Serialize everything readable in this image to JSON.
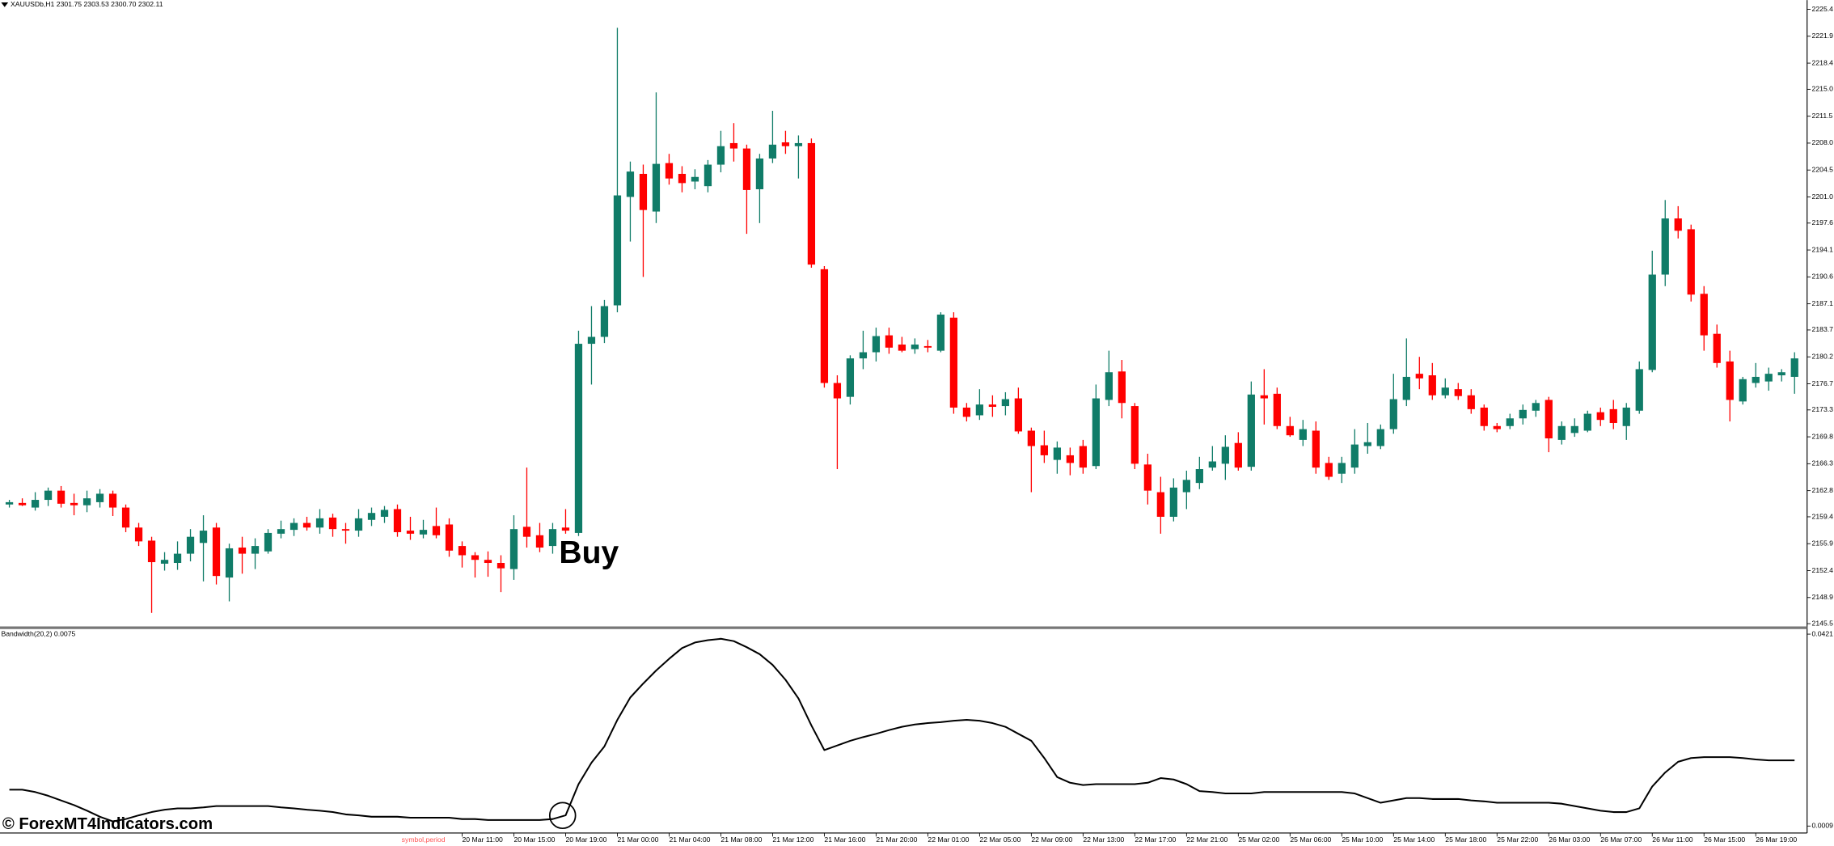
{
  "chart_data": [
    {
      "type": "candlestick",
      "title": "XAUUSDb,H1  2301.75 2303.53 2300.70 2302.11",
      "annotation": "Buy",
      "watermark": "© ForexMT4Indicators.com",
      "period_label": "symbol,period",
      "up_color": "#107c68",
      "down_color": "#ff0000",
      "ylim": [
        2145.2,
        2226.6
      ],
      "yticks": [
        2225.4,
        2221.9,
        2218.4,
        {
          "value": 2215.0,
          "label": "2215.0"
        },
        2211.5,
        {
          "value": 2208.0,
          "label": "2208.0"
        },
        2204.5,
        {
          "value": 2201.0,
          "label": "2201.0"
        },
        2197.6,
        2194.1,
        2190.6,
        2187.1,
        2183.7,
        2180.2,
        2176.7,
        2173.3,
        2169.8,
        2166.3,
        2162.8,
        2159.4,
        2155.9,
        2152.4,
        2148.9,
        2145.5
      ],
      "categories": [
        null,
        null,
        null,
        null,
        null,
        null,
        null,
        null,
        null,
        null,
        null,
        null,
        null,
        null,
        null,
        null,
        null,
        null,
        null,
        null,
        null,
        null,
        null,
        null,
        null,
        null,
        null,
        null,
        null,
        null,
        null,
        null,
        null,
        null,
        null,
        "20 Mar 11:00",
        null,
        null,
        null,
        "20 Mar 15:00",
        null,
        null,
        null,
        "20 Mar 19:00",
        null,
        null,
        null,
        "21 Mar 00:00",
        null,
        null,
        null,
        "21 Mar 04:00",
        null,
        null,
        null,
        "21 Mar 08:00",
        null,
        null,
        null,
        "21 Mar 12:00",
        null,
        null,
        null,
        "21 Mar 16:00",
        null,
        null,
        null,
        "21 Mar 20:00",
        null,
        null,
        null,
        "22 Mar 01:00",
        null,
        null,
        null,
        "22 Mar 05:00",
        null,
        null,
        null,
        "22 Mar 09:00",
        null,
        null,
        null,
        "22 Mar 13:00",
        null,
        null,
        null,
        "22 Mar 17:00",
        null,
        null,
        null,
        "22 Mar 21:00",
        null,
        null,
        null,
        "25 Mar 02:00",
        null,
        null,
        null,
        "25 Mar 06:00",
        null,
        null,
        null,
        "25 Mar 10:00",
        null,
        null,
        null,
        "25 Mar 14:00",
        null,
        null,
        null,
        "25 Mar 18:00",
        null,
        null,
        null,
        "25 Mar 22:00",
        null,
        null,
        null,
        "26 Mar 03:00",
        null,
        null,
        null,
        "26 Mar 07:00",
        null,
        null,
        null,
        "26 Mar 11:00",
        null,
        null,
        null,
        "26 Mar 15:00",
        null,
        null,
        null,
        "26 Mar 19:00",
        null,
        null,
        null
      ],
      "candles": [
        [
          2161.0,
          2161.6,
          2160.6,
          2161.3
        ],
        [
          2161.2,
          2161.8,
          2160.8,
          2160.9
        ],
        [
          2160.6,
          2162.6,
          2160.2,
          2161.6
        ],
        [
          2161.6,
          2163.2,
          2160.8,
          2162.8
        ],
        [
          2162.8,
          2163.4,
          2160.6,
          2161.1
        ],
        [
          2161.2,
          2162.4,
          2159.6,
          2160.9
        ],
        [
          2160.9,
          2162.8,
          2160.0,
          2161.8
        ],
        [
          2161.3,
          2163.0,
          2160.6,
          2162.4
        ],
        [
          2162.4,
          2162.8,
          2159.5,
          2160.6
        ],
        [
          2160.6,
          2161.0,
          2157.4,
          2158.0
        ],
        [
          2158.0,
          2158.6,
          2155.6,
          2156.2
        ],
        [
          2156.3,
          2156.8,
          2146.9,
          2153.5
        ],
        [
          2153.3,
          2154.8,
          2152.4,
          2153.8
        ],
        [
          2153.4,
          2156.2,
          2152.5,
          2154.6
        ],
        [
          2154.6,
          2157.8,
          2153.6,
          2156.8
        ],
        [
          2156.0,
          2159.6,
          2151.0,
          2157.6
        ],
        [
          2158.0,
          2158.6,
          2150.6,
          2151.7
        ],
        [
          2151.5,
          2155.9,
          2148.4,
          2155.3
        ],
        [
          2155.4,
          2156.8,
          2152.0,
          2154.6
        ],
        [
          2154.6,
          2156.6,
          2152.6,
          2155.6
        ],
        [
          2154.9,
          2157.8,
          2154.6,
          2157.3
        ],
        [
          2157.2,
          2158.9,
          2156.6,
          2157.8
        ],
        [
          2157.7,
          2159.2,
          2156.9,
          2158.6
        ],
        [
          2158.6,
          2159.4,
          2157.6,
          2158.0
        ],
        [
          2158.0,
          2160.4,
          2157.2,
          2159.2
        ],
        [
          2159.3,
          2159.8,
          2156.8,
          2157.8
        ],
        [
          2157.8,
          2158.6,
          2155.9,
          2157.6
        ],
        [
          2157.6,
          2160.4,
          2156.8,
          2159.2
        ],
        [
          2159.0,
          2160.6,
          2158.2,
          2159.9
        ],
        [
          2159.4,
          2160.8,
          2158.6,
          2160.3
        ],
        [
          2160.4,
          2161.0,
          2156.8,
          2157.4
        ],
        [
          2157.6,
          2159.4,
          2156.4,
          2157.2
        ],
        [
          2157.1,
          2159.0,
          2156.6,
          2157.7
        ],
        [
          2158.2,
          2160.6,
          2156.6,
          2157.0
        ],
        [
          2158.4,
          2159.2,
          2154.2,
          2155.0
        ],
        [
          2155.6,
          2156.2,
          2152.8,
          2154.4
        ],
        [
          2154.4,
          2154.8,
          2151.5,
          2153.8
        ],
        [
          2153.8,
          2154.9,
          2151.6,
          2153.4
        ],
        [
          2153.4,
          2154.4,
          2149.6,
          2152.7
        ],
        [
          2152.6,
          2159.6,
          2151.2,
          2157.8
        ],
        [
          2158.1,
          2165.8,
          2155.4,
          2156.8
        ],
        [
          2157.0,
          2158.6,
          2154.8,
          2155.4
        ],
        [
          2155.6,
          2158.6,
          2154.6,
          2157.8
        ],
        [
          2158.0,
          2160.4,
          2157.2,
          2157.6
        ],
        [
          2157.3,
          2183.6,
          2156.9,
          2181.9
        ],
        [
          2181.9,
          2186.8,
          2176.6,
          2182.8
        ],
        [
          2182.8,
          2187.6,
          2182.0,
          2186.8
        ],
        [
          2186.9,
          2223.0,
          2186.0,
          2201.2
        ],
        [
          2201.0,
          2205.6,
          2195.2,
          2204.3
        ],
        [
          2204.0,
          2205.2,
          2190.6,
          2199.3
        ],
        [
          2199.1,
          2214.6,
          2197.6,
          2205.3
        ],
        [
          2205.4,
          2206.6,
          2202.6,
          2203.4
        ],
        [
          2204.0,
          2205.0,
          2201.6,
          2202.8
        ],
        [
          2203.0,
          2204.6,
          2202.0,
          2203.6
        ],
        [
          2202.4,
          2205.8,
          2201.6,
          2205.2
        ],
        [
          2205.2,
          2209.6,
          2204.2,
          2207.6
        ],
        [
          2208.0,
          2210.6,
          2205.6,
          2207.3
        ],
        [
          2207.3,
          2207.8,
          2196.2,
          2201.9
        ],
        [
          2202.0,
          2206.6,
          2197.6,
          2206.0
        ],
        [
          2206.0,
          2212.2,
          2205.4,
          2207.8
        ],
        [
          2208.1,
          2209.6,
          2206.6,
          2207.6
        ],
        [
          2207.6,
          2209.0,
          2203.4,
          2208.0
        ],
        [
          2208.0,
          2208.6,
          2191.8,
          2192.2
        ],
        [
          2191.6,
          2192.0,
          2176.2,
          2176.8
        ],
        [
          2176.8,
          2177.8,
          2165.6,
          2174.8
        ],
        [
          2175.0,
          2180.4,
          2174.0,
          2180.0
        ],
        [
          2180.0,
          2183.6,
          2178.6,
          2180.8
        ],
        [
          2180.8,
          2184.0,
          2179.6,
          2182.9
        ],
        [
          2183.0,
          2184.0,
          2180.6,
          2181.4
        ],
        [
          2181.8,
          2182.8,
          2180.8,
          2181.0
        ],
        [
          2181.2,
          2182.6,
          2180.6,
          2181.8
        ],
        [
          2181.6,
          2182.4,
          2180.8,
          2181.4
        ],
        [
          2181.0,
          2186.0,
          2180.8,
          2185.7
        ],
        [
          2185.3,
          2186.0,
          2172.8,
          2173.6
        ],
        [
          2173.6,
          2174.2,
          2171.8,
          2172.4
        ],
        [
          2172.6,
          2176.0,
          2172.0,
          2174.0
        ],
        [
          2174.0,
          2175.2,
          2172.4,
          2173.7
        ],
        [
          2173.8,
          2175.6,
          2172.6,
          2174.7
        ],
        [
          2174.8,
          2176.2,
          2170.2,
          2170.5
        ],
        [
          2170.6,
          2171.0,
          2162.6,
          2168.6
        ],
        [
          2168.7,
          2170.6,
          2166.4,
          2167.4
        ],
        [
          2166.8,
          2169.2,
          2165.0,
          2168.4
        ],
        [
          2167.4,
          2168.4,
          2164.8,
          2166.4
        ],
        [
          2168.6,
          2169.4,
          2165.0,
          2165.8
        ],
        [
          2166.0,
          2176.6,
          2165.6,
          2174.8
        ],
        [
          2174.6,
          2181.0,
          2173.8,
          2178.2
        ],
        [
          2178.3,
          2179.8,
          2172.2,
          2174.2
        ],
        [
          2173.8,
          2174.2,
          2165.6,
          2166.3
        ],
        [
          2166.2,
          2167.6,
          2161.0,
          2162.8
        ],
        [
          2162.6,
          2164.6,
          2157.2,
          2159.4
        ],
        [
          2159.4,
          2164.4,
          2158.8,
          2163.2
        ],
        [
          2162.6,
          2165.4,
          2160.4,
          2164.2
        ],
        [
          2163.8,
          2167.2,
          2163.0,
          2165.6
        ],
        [
          2165.8,
          2168.6,
          2165.4,
          2166.6
        ],
        [
          2166.3,
          2170.0,
          2164.2,
          2168.5
        ],
        [
          2169.0,
          2170.4,
          2165.4,
          2165.8
        ],
        [
          2165.9,
          2177.0,
          2165.4,
          2175.3
        ],
        [
          2175.2,
          2178.6,
          2171.4,
          2174.8
        ],
        [
          2175.4,
          2176.2,
          2170.8,
          2171.2
        ],
        [
          2171.2,
          2172.4,
          2169.8,
          2170.0
        ],
        [
          2169.4,
          2172.0,
          2168.6,
          2170.8
        ],
        [
          2170.6,
          2171.8,
          2165.0,
          2165.8
        ],
        [
          2166.4,
          2167.2,
          2164.2,
          2164.6
        ],
        [
          2165.0,
          2167.2,
          2163.8,
          2166.4
        ],
        [
          2165.8,
          2170.8,
          2165.0,
          2168.8
        ],
        [
          2168.6,
          2171.6,
          2167.6,
          2169.1
        ],
        [
          2168.6,
          2171.4,
          2168.2,
          2170.8
        ],
        [
          2170.8,
          2178.0,
          2170.2,
          2174.7
        ],
        [
          2174.6,
          2182.6,
          2173.8,
          2177.6
        ],
        [
          2178.0,
          2180.2,
          2176.0,
          2177.4
        ],
        [
          2177.8,
          2179.4,
          2174.6,
          2175.2
        ],
        [
          2175.2,
          2177.4,
          2174.8,
          2176.2
        ],
        [
          2176.0,
          2176.8,
          2174.6,
          2175.1
        ],
        [
          2175.2,
          2176.0,
          2172.8,
          2173.4
        ],
        [
          2173.6,
          2174.0,
          2170.6,
          2171.2
        ],
        [
          2171.2,
          2171.6,
          2170.4,
          2170.8
        ],
        [
          2171.2,
          2172.8,
          2170.8,
          2172.2
        ],
        [
          2172.2,
          2174.0,
          2171.4,
          2173.3
        ],
        [
          2173.2,
          2174.6,
          2172.4,
          2174.2
        ],
        [
          2174.6,
          2175.0,
          2167.8,
          2169.6
        ],
        [
          2169.4,
          2171.8,
          2168.8,
          2171.2
        ],
        [
          2170.3,
          2172.2,
          2169.8,
          2171.2
        ],
        [
          2170.6,
          2173.2,
          2170.4,
          2172.8
        ],
        [
          2173.0,
          2173.6,
          2171.2,
          2172.0
        ],
        [
          2173.4,
          2174.6,
          2170.8,
          2171.6
        ],
        [
          2171.2,
          2174.2,
          2169.4,
          2173.6
        ],
        [
          2173.2,
          2179.6,
          2172.8,
          2178.6
        ],
        [
          2178.5,
          2194.0,
          2178.2,
          2190.9
        ],
        [
          2190.9,
          2200.6,
          2189.4,
          2198.2
        ],
        [
          2198.2,
          2199.8,
          2195.6,
          2196.6
        ],
        [
          2196.8,
          2197.4,
          2187.4,
          2188.3
        ],
        [
          2188.4,
          2189.4,
          2181.0,
          2183.0
        ],
        [
          2183.2,
          2184.4,
          2178.8,
          2179.4
        ],
        [
          2179.6,
          2181.0,
          2171.8,
          2174.6
        ],
        [
          2174.4,
          2177.6,
          2174.0,
          2177.3
        ],
        [
          2176.8,
          2179.4,
          2176.2,
          2177.6
        ],
        [
          2177.0,
          2178.8,
          2175.8,
          2178.0
        ],
        [
          2177.8,
          2178.6,
          2177.0,
          2178.2
        ],
        [
          2177.6,
          2180.8,
          2175.4,
          2180.0
        ]
      ]
    },
    {
      "type": "line",
      "title": "Bandwidth(20,2) 0.0075",
      "color": "#000000",
      "ylim": [
        -0.0006,
        0.0431
      ],
      "yticks": [
        0.0421,
        0.0009
      ],
      "values": [
        0.0087,
        0.0087,
        0.0082,
        0.0074,
        0.0064,
        0.0054,
        0.0042,
        0.0029,
        0.0019,
        0.0024,
        0.0032,
        0.0039,
        0.0044,
        0.0047,
        0.0047,
        0.0049,
        0.0052,
        0.0052,
        0.0052,
        0.0052,
        0.0052,
        0.0049,
        0.0047,
        0.0044,
        0.0042,
        0.0039,
        0.0034,
        0.0032,
        0.0029,
        0.0029,
        0.0029,
        0.0027,
        0.0027,
        0.0027,
        0.0027,
        0.0024,
        0.0024,
        0.0022,
        0.0022,
        0.0022,
        0.0022,
        0.0022,
        0.0024,
        0.0032,
        0.0099,
        0.0145,
        0.018,
        0.0237,
        0.0285,
        0.0315,
        0.0343,
        0.0368,
        0.0391,
        0.0403,
        0.0408,
        0.0411,
        0.0406,
        0.0393,
        0.0378,
        0.0355,
        0.0323,
        0.0283,
        0.0225,
        0.0172,
        0.0182,
        0.0192,
        0.02,
        0.0207,
        0.0215,
        0.0222,
        0.0227,
        0.023,
        0.0232,
        0.0235,
        0.0237,
        0.0235,
        0.023,
        0.0222,
        0.0207,
        0.0192,
        0.0155,
        0.0114,
        0.0102,
        0.0097,
        0.0099,
        0.0099,
        0.0099,
        0.0099,
        0.0102,
        0.0112,
        0.0109,
        0.0099,
        0.0084,
        0.0082,
        0.0079,
        0.0079,
        0.0079,
        0.0082,
        0.0082,
        0.0082,
        0.0082,
        0.0082,
        0.0082,
        0.0082,
        0.0079,
        0.0069,
        0.0059,
        0.0064,
        0.0069,
        0.0069,
        0.0067,
        0.0067,
        0.0067,
        0.0064,
        0.0062,
        0.0059,
        0.0059,
        0.0059,
        0.0059,
        0.0059,
        0.0057,
        0.0052,
        0.0047,
        0.0042,
        0.0039,
        0.0039,
        0.0047,
        0.0094,
        0.0124,
        0.0147,
        0.0155,
        0.0157,
        0.0157,
        0.0157,
        0.0155,
        0.0152,
        0.015,
        0.015,
        0.015
      ]
    }
  ]
}
